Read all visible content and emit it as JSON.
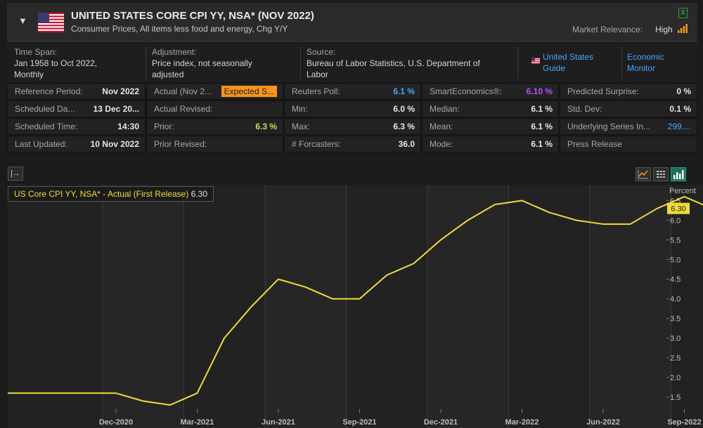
{
  "header": {
    "collapse_glyph": "▼",
    "flag_icon": "us-flag-icon",
    "title": "UNITED STATES CORE CPI YY, NSA* (NOV 2022)",
    "subtitle": "Consumer Prices, All items less food and energy, Chg Y/Y",
    "excel_glyph": "X",
    "relevance_label": "Market Relevance:",
    "relevance_value": "High"
  },
  "info": {
    "time_span_label": "Time Span:",
    "time_span_value": "Jan 1958 to Oct 2022,",
    "time_span_value2": "Monthly",
    "adjustment_label": "Adjustment:",
    "adjustment_value": "Price index, not seasonally",
    "adjustment_value2": "adjusted",
    "source_label": "Source:",
    "source_value": "Bureau of Labor Statistics, U.S. Department of",
    "source_value2": "Labor",
    "guide_link_1": "United States",
    "guide_link_2": "Guide",
    "monitor_link_1": "Economic",
    "monitor_link_2": "Monitor"
  },
  "stats": {
    "col1": [
      {
        "label": "Reference Period:",
        "value": "Nov 2022"
      },
      {
        "label": "Scheduled Da...",
        "value": "13 Dec 20..."
      },
      {
        "label": "Scheduled Time:",
        "value": "14:30"
      },
      {
        "label": "Last Updated:",
        "value": "10 Nov 2022"
      }
    ],
    "col2": [
      {
        "label": "Actual (Nov 2...",
        "value": "Expected S..."
      },
      {
        "label": "Actual Revised:",
        "value": ""
      },
      {
        "label": "Prior:",
        "value": "6.3 %"
      },
      {
        "label": "Prior Revised:",
        "value": ""
      }
    ],
    "col3": [
      {
        "label": "Reuters Poll:",
        "value": "6.1 %"
      },
      {
        "label": "Min:",
        "value": "6.0 %"
      },
      {
        "label": "Max:",
        "value": "6.3 %"
      },
      {
        "label": "# Forcasters:",
        "value": "36.0"
      }
    ],
    "col4": [
      {
        "label": "SmartEconomics®:",
        "value": "6.10 %"
      },
      {
        "label": "Median:",
        "value": "6.1 %"
      },
      {
        "label": "Mean:",
        "value": "6.1 %"
      },
      {
        "label": "Mode:",
        "value": "6.1 %"
      }
    ],
    "col5": [
      {
        "label": "Predicted Surprise:",
        "value": "0 %"
      },
      {
        "label": "Std. Dev:",
        "value": "0.1 %"
      },
      {
        "label": "Underlying Series In...",
        "value": "299...."
      },
      {
        "label": "Press Release",
        "value": ""
      }
    ]
  },
  "colors": {
    "line": "#f2da3a",
    "accent_blue": "#4aa3ff",
    "smart_purple": "#c04cff",
    "prior_green": "#c8e04a",
    "expected_orange": "#f7941d"
  },
  "chart_toolbar": {
    "toggle_glyph": "|→",
    "icons": [
      "line-chart-icon",
      "table-icon",
      "bar-chart-icon"
    ]
  },
  "chart_data": {
    "type": "line",
    "legend_name": "US Core CPI YY, NSA* - Actual (First Release)",
    "legend_value": "6.30",
    "y_unit": "Percent",
    "last_value_label": "6.30",
    "ylim": [
      1.25,
      6.9
    ],
    "yticks": [
      "1.5",
      "2.0",
      "2.5",
      "3.0",
      "3.5",
      "4.0",
      "4.5",
      "5.0",
      "5.5",
      "6.0",
      "6.5"
    ],
    "xticks": [
      "Dec-2020",
      "Mar-2021",
      "Jun-2021",
      "Sep-2021",
      "Dec-2021",
      "Mar-2022",
      "Jun-2022",
      "Sep-2022"
    ],
    "x": [
      "2020-08",
      "2020-09",
      "2020-10",
      "2020-11",
      "2020-12",
      "2021-01",
      "2021-02",
      "2021-03",
      "2021-04",
      "2021-05",
      "2021-06",
      "2021-07",
      "2021-08",
      "2021-09",
      "2021-10",
      "2021-11",
      "2021-12",
      "2022-01",
      "2022-02",
      "2022-03",
      "2022-04",
      "2022-05",
      "2022-06",
      "2022-07",
      "2022-08",
      "2022-09",
      "2022-10"
    ],
    "series": [
      {
        "values": [
          1.6,
          1.6,
          1.6,
          1.6,
          1.6,
          1.4,
          1.3,
          1.6,
          3.0,
          3.8,
          4.5,
          4.3,
          4.0,
          4.0,
          4.6,
          4.9,
          5.5,
          6.0,
          6.4,
          6.5,
          6.2,
          6.0,
          5.9,
          5.9,
          6.3,
          6.6,
          6.3
        ]
      }
    ]
  }
}
